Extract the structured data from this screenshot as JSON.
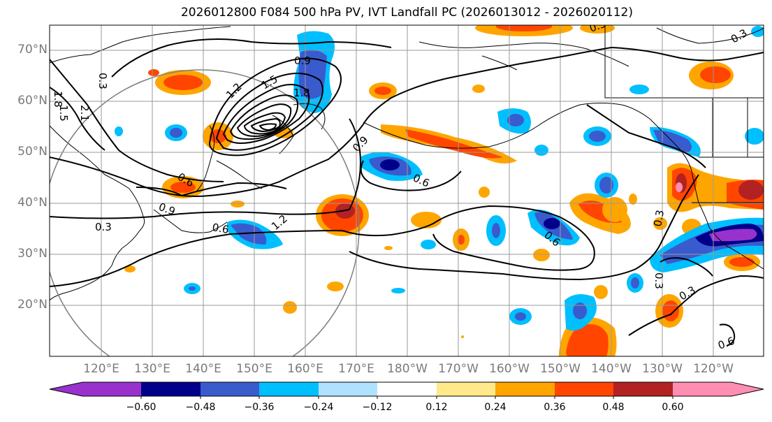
{
  "title": "2026012800 F084 500 hPa PV, IVT Landfall PC (2026013012 - 2026020112)",
  "lat_labels": [
    "70°N",
    "60°N",
    "50°N",
    "40°N",
    "30°N",
    "20°N"
  ],
  "lon_labels": [
    "120°E",
    "130°E",
    "140°E",
    "150°E",
    "160°E",
    "170°E",
    "180°W",
    "170°W",
    "160°W",
    "150°W",
    "140°W",
    "130°W",
    "120°W"
  ],
  "colorbar": {
    "ticks": [
      "−0.60",
      "−0.48",
      "−0.36",
      "−0.24",
      "−0.12",
      "0.12",
      "0.24",
      "0.36",
      "0.48",
      "0.60"
    ],
    "colors": [
      "#9932cc",
      "#00008b",
      "#3a5bcd",
      "#00bfff",
      "#b0e2ff",
      "#ffffff",
      "#ffe98a",
      "#ffa500",
      "#ff4500",
      "#b22222",
      "#ff8eb2"
    ]
  },
  "contour_labels": [
    "0.3",
    "1.8",
    "1.5",
    "2.1",
    "0.9",
    "1.5",
    "1.8",
    "1.2",
    "0.6",
    "0.9",
    "0.3",
    "0.6",
    "1.2",
    "0.9",
    "0.6",
    "0.6",
    "0.3",
    "0.3",
    "0.3",
    "0.6",
    "0.3",
    "0.3"
  ],
  "colors": {
    "positive_strong": "#ff4500",
    "positive_mid": "#ffa500",
    "positive_weak": "#ffe98a",
    "positive_max": "#b22222",
    "positive_peak": "#ff8eb2",
    "negative_weak": "#b0e2ff",
    "negative_mid": "#00bfff",
    "negative_strong": "#3a5bcd",
    "negative_deep": "#00008b",
    "negative_peak": "#9932cc"
  }
}
